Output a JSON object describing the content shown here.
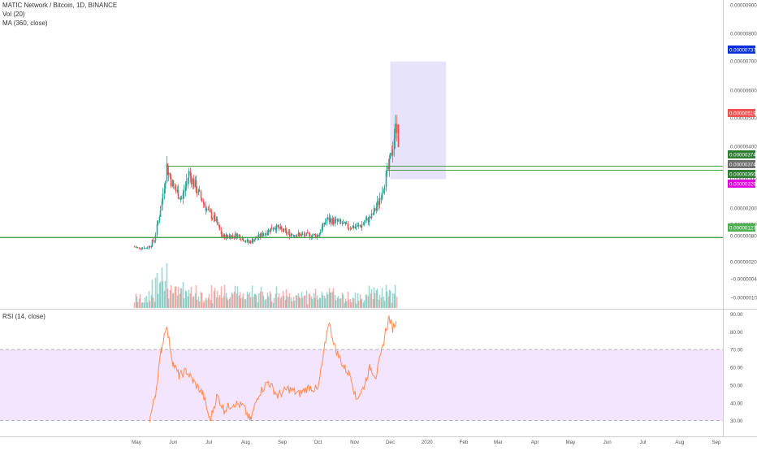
{
  "header": {
    "symbol": "MATIC Network / Bitcoin, 1D, BINANCE",
    "vol": "Vol (20)",
    "ma": "MA (360, close)"
  },
  "rsi_pane": {
    "title": "RSI (14, close)"
  },
  "colors": {
    "up": "#26a69a",
    "down": "#ef5350",
    "hline": "#43a047",
    "rsi_line": "#ff8a50",
    "rsi_band": "#f3e5fd",
    "projection": "#e3e0fb",
    "badge_blue": "#0b2fd8",
    "badge_red": "#ef5350",
    "badge_green": "#2e7d32",
    "badge_gray": "#6d6d6d",
    "badge_magenta": "#e000e0",
    "badge_lightgreen": "#4caf50"
  },
  "price_axis": {
    "ticks": [
      "0.00000900",
      "0.00000800",
      "0.00000700",
      "0.00000600",
      "0.00000500",
      "0.00000400",
      "0.00000300",
      "0.00000200",
      "0.00000150",
      "0.00000080",
      "0.00000020",
      "−0.00000040",
      "−0.00000100"
    ],
    "badges": [
      {
        "label": "0.00000737",
        "color": "badge_blue"
      },
      {
        "label": "0.00000519",
        "color": "badge_red"
      },
      {
        "label": "0.00000374",
        "color": "badge_green"
      },
      {
        "label": "0.00000374",
        "color": "badge_gray"
      },
      {
        "label": "0.00000360",
        "color": "badge_green"
      },
      {
        "label": "0.00000329",
        "color": "badge_magenta"
      },
      {
        "label": "0.00000127",
        "color": "badge_lightgreen"
      }
    ]
  },
  "rsi_axis": {
    "ticks": [
      "90.00",
      "80.00",
      "70.00",
      "60.00",
      "50.00",
      "40.00",
      "30.00"
    ]
  },
  "time_axis": {
    "labels": [
      "May",
      "Jun",
      "Jul",
      "Aug",
      "Sep",
      "Oct",
      "Nov",
      "Dec",
      "2020",
      "Feb",
      "Mar",
      "Apr",
      "May",
      "Jun",
      "Jul",
      "Aug",
      "Sep"
    ]
  },
  "chart_data": {
    "type": "candlestick",
    "title": "MATIC Network / Bitcoin, 1D, BINANCE",
    "price_range": [
      -1.2e-06,
      9.5e-06
    ],
    "horizontal_levels": [
      3.74e-06,
      3.6e-06,
      1.27e-06
    ],
    "projection_box": {
      "start": "2019-12-01",
      "end": "2020-01-17",
      "top": 7.37e-06,
      "bottom": 3.29e-06
    },
    "last_price": 5.19e-06,
    "price_path": [
      {
        "date": "2019-04-29",
        "price": 9.5e-07
      },
      {
        "date": "2019-05-08",
        "price": 8e-07
      },
      {
        "date": "2019-05-16",
        "price": 1.2e-06
      },
      {
        "date": "2019-05-22",
        "price": 2.5e-06
      },
      {
        "date": "2019-05-26",
        "price": 3.74e-06
      },
      {
        "date": "2019-06-01",
        "price": 3e-06
      },
      {
        "date": "2019-06-08",
        "price": 2.6e-06
      },
      {
        "date": "2019-06-14",
        "price": 3.5e-06
      },
      {
        "date": "2019-06-22",
        "price": 2.8e-06
      },
      {
        "date": "2019-07-01",
        "price": 2.1e-06
      },
      {
        "date": "2019-07-06",
        "price": 1.9e-06
      },
      {
        "date": "2019-07-12",
        "price": 1.3e-06
      },
      {
        "date": "2019-07-25",
        "price": 1.35e-06
      },
      {
        "date": "2019-08-03",
        "price": 1.1e-06
      },
      {
        "date": "2019-08-12",
        "price": 1.3e-06
      },
      {
        "date": "2019-08-25",
        "price": 1.65e-06
      },
      {
        "date": "2019-09-06",
        "price": 1.4e-06
      },
      {
        "date": "2019-09-20",
        "price": 1.35e-06
      },
      {
        "date": "2019-10-01",
        "price": 1.35e-06
      },
      {
        "date": "2019-10-08",
        "price": 1.9e-06
      },
      {
        "date": "2019-10-18",
        "price": 1.8e-06
      },
      {
        "date": "2019-10-25",
        "price": 1.65e-06
      },
      {
        "date": "2019-11-05",
        "price": 1.65e-06
      },
      {
        "date": "2019-11-15",
        "price": 2e-06
      },
      {
        "date": "2019-11-21",
        "price": 2.5e-06
      },
      {
        "date": "2019-11-27",
        "price": 3.4e-06
      },
      {
        "date": "2019-11-30",
        "price": 3.74e-06
      },
      {
        "date": "2019-12-04",
        "price": 4.8e-06
      },
      {
        "date": "2019-12-06",
        "price": 5.19e-06
      }
    ],
    "volume_max": 3e-07,
    "rsi": {
      "title": "RSI (14, close)",
      "range": [
        28,
        92
      ],
      "bands": [
        30,
        70
      ],
      "path": [
        {
          "date": "2019-05-12",
          "value": 30
        },
        {
          "date": "2019-05-17",
          "value": 45
        },
        {
          "date": "2019-05-22",
          "value": 70
        },
        {
          "date": "2019-05-26",
          "value": 84
        },
        {
          "date": "2019-06-01",
          "value": 62
        },
        {
          "date": "2019-06-06",
          "value": 55
        },
        {
          "date": "2019-06-12",
          "value": 58
        },
        {
          "date": "2019-06-18",
          "value": 52
        },
        {
          "date": "2019-06-26",
          "value": 45
        },
        {
          "date": "2019-07-02",
          "value": 30
        },
        {
          "date": "2019-07-08",
          "value": 44
        },
        {
          "date": "2019-07-14",
          "value": 36
        },
        {
          "date": "2019-07-22",
          "value": 40
        },
        {
          "date": "2019-07-30",
          "value": 38
        },
        {
          "date": "2019-08-05",
          "value": 30
        },
        {
          "date": "2019-08-12",
          "value": 45
        },
        {
          "date": "2019-08-20",
          "value": 52
        },
        {
          "date": "2019-08-28",
          "value": 44
        },
        {
          "date": "2019-09-06",
          "value": 48
        },
        {
          "date": "2019-09-15",
          "value": 45
        },
        {
          "date": "2019-09-24",
          "value": 49
        },
        {
          "date": "2019-10-01",
          "value": 47
        },
        {
          "date": "2019-10-06",
          "value": 68
        },
        {
          "date": "2019-10-10",
          "value": 86
        },
        {
          "date": "2019-10-16",
          "value": 70
        },
        {
          "date": "2019-10-23",
          "value": 60
        },
        {
          "date": "2019-10-29",
          "value": 55
        },
        {
          "date": "2019-11-02",
          "value": 42
        },
        {
          "date": "2019-11-08",
          "value": 48
        },
        {
          "date": "2019-11-14",
          "value": 60
        },
        {
          "date": "2019-11-19",
          "value": 55
        },
        {
          "date": "2019-11-23",
          "value": 66
        },
        {
          "date": "2019-11-27",
          "value": 80
        },
        {
          "date": "2019-11-30",
          "value": 88
        },
        {
          "date": "2019-12-03",
          "value": 82
        },
        {
          "date": "2019-12-06",
          "value": 86
        }
      ]
    }
  }
}
